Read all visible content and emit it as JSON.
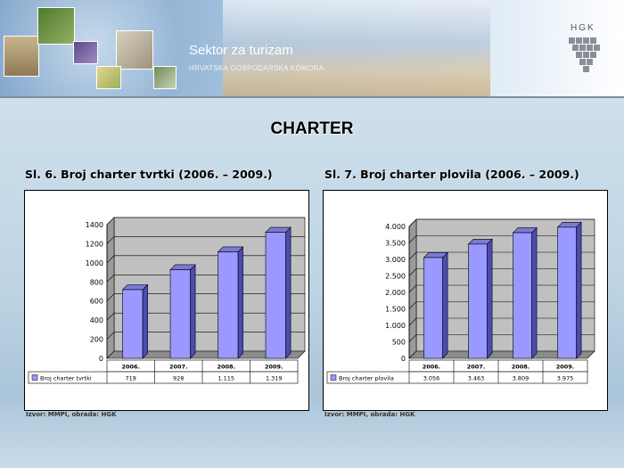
{
  "banner": {
    "title": "Sektor za turizam",
    "subtitle": "HRVATSKA GOSPODARSKA KOMORA",
    "logo_text": "HGK"
  },
  "page": {
    "heading": "CHARTER"
  },
  "chart_data": [
    {
      "type": "bar",
      "title": "Sl. 6. Broj charter tvrtki (2006. – 2009.)",
      "categories": [
        "2006.",
        "2007.",
        "2008.",
        "2009."
      ],
      "series": [
        {
          "name": "Broj charter tvrtki",
          "values": [
            719,
            928,
            1115,
            1319
          ]
        }
      ],
      "value_labels": [
        "719",
        "928",
        "1.115",
        "1.319"
      ],
      "ylim": [
        0,
        1400
      ],
      "yticks": [
        0,
        200,
        400,
        600,
        800,
        1000,
        1200,
        1400
      ],
      "ytick_labels": [
        "0",
        "200",
        "400",
        "600",
        "800",
        "1000",
        "1200",
        "1400"
      ],
      "grid": true,
      "bar_color": "#9999ff",
      "source": "Izvor: MMPI, obrada: HGK"
    },
    {
      "type": "bar",
      "title": "Sl. 7. Broj charter plovila (2006. – 2009.)",
      "categories": [
        "2006.",
        "2007.",
        "2008.",
        "2009."
      ],
      "series": [
        {
          "name": "Broj charter plovila",
          "values": [
            3056,
            3463,
            3809,
            3975
          ]
        }
      ],
      "value_labels": [
        "3.056",
        "3.463",
        "3.809",
        "3.975"
      ],
      "ylim": [
        0,
        4000
      ],
      "yticks": [
        0,
        500,
        1000,
        1500,
        2000,
        2500,
        3000,
        3500,
        4000
      ],
      "ytick_labels": [
        "0",
        "500",
        "1.000",
        "1.500",
        "2.000",
        "2.500",
        "3.000",
        "3.500",
        "4.000"
      ],
      "grid": true,
      "bar_color": "#9999ff",
      "source": "Izvor: MMPI, obrada: HGK"
    }
  ]
}
